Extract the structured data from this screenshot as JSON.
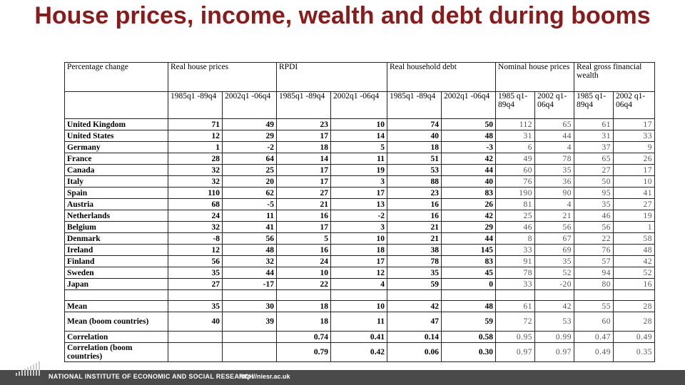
{
  "title": "House prices, income, wealth and debt during booms",
  "header": {
    "row1": [
      "Percentage change",
      "Real house prices",
      "RPDI",
      "Real household debt",
      "Nominal house prices",
      "Real gross financial wealth"
    ],
    "row2": [
      "1985q1 -89q4",
      "2002q1 -06q4",
      "1985q1 -89q4",
      "2002q1 -06q4",
      "1985q1 -89q4",
      "2002q1 -06q4",
      "1985 q1- 89q4",
      "2002 q1- 06q4",
      "1985 q1- 89q4",
      "2002 q1- 06q4"
    ]
  },
  "rows": [
    {
      "country": "United Kingdom",
      "v": [
        "71",
        "49",
        "23",
        "10",
        "74",
        "50",
        "112",
        "65",
        "61",
        "17"
      ]
    },
    {
      "country": "United States",
      "v": [
        "12",
        "29",
        "17",
        "14",
        "40",
        "48",
        "31",
        "44",
        "31",
        "33"
      ]
    },
    {
      "country": "Germany",
      "v": [
        "1",
        "-2",
        "18",
        "5",
        "18",
        "-3",
        "6",
        "4",
        "37",
        "9"
      ]
    },
    {
      "country": "France",
      "v": [
        "28",
        "64",
        "14",
        "11",
        "51",
        "42",
        "49",
        "78",
        "65",
        "26"
      ]
    },
    {
      "country": "Canada",
      "v": [
        "32",
        "25",
        "17",
        "19",
        "53",
        "44",
        "60",
        "35",
        "27",
        "17"
      ]
    },
    {
      "country": "Italy",
      "v": [
        "32",
        "20",
        "17",
        "3",
        "88",
        "40",
        "76",
        "36",
        "50",
        "10"
      ]
    },
    {
      "country": "Spain",
      "v": [
        "110",
        "62",
        "27",
        "17",
        "23",
        "83",
        "190",
        "90",
        "95",
        "41"
      ]
    },
    {
      "country": "Austria",
      "v": [
        "68",
        "-5",
        "21",
        "13",
        "16",
        "26",
        "81",
        "4",
        "35",
        "27"
      ]
    },
    {
      "country": "Netherlands",
      "v": [
        "24",
        "11",
        "16",
        "-2",
        "16",
        "42",
        "25",
        "21",
        "46",
        "19"
      ]
    },
    {
      "country": "Belgium",
      "v": [
        "32",
        "41",
        "17",
        "3",
        "21",
        "29",
        "46",
        "56",
        "56",
        "1"
      ]
    },
    {
      "country": "Denmark",
      "v": [
        "-8",
        "56",
        "5",
        "10",
        "21",
        "44",
        "8",
        "67",
        "22",
        "58"
      ]
    },
    {
      "country": "Ireland",
      "v": [
        "12",
        "48",
        "16",
        "18",
        "38",
        "145",
        "33",
        "69",
        "76",
        "48"
      ]
    },
    {
      "country": "Finland",
      "v": [
        "56",
        "32",
        "24",
        "17",
        "78",
        "83",
        "91",
        "35",
        "57",
        "42"
      ]
    },
    {
      "country": "Sweden",
      "v": [
        "35",
        "44",
        "10",
        "12",
        "35",
        "45",
        "78",
        "52",
        "94",
        "52"
      ]
    },
    {
      "country": "Japan",
      "v": [
        "27",
        "-17",
        "22",
        "4",
        "59",
        "0",
        "33",
        "-20",
        "80",
        "16"
      ]
    }
  ],
  "summary": [
    {
      "label": "Mean",
      "v": [
        "35",
        "30",
        "18",
        "10",
        "42",
        "48",
        "61",
        "42",
        "55",
        "28"
      ]
    },
    {
      "label": "Mean (boom countries)",
      "v": [
        "40",
        "39",
        "18",
        "11",
        "47",
        "59",
        "72",
        "53",
        "60",
        "28"
      ]
    },
    {
      "label": "Correlation",
      "v": [
        "",
        "",
        "0.74",
        "0.41",
        "0.14",
        "0.58",
        "0.95",
        "0.99",
        "0.47",
        "0.49"
      ]
    },
    {
      "label": "Correlation (boom countries)",
      "v": [
        "",
        "",
        "0.79",
        "0.42",
        "0.06",
        "0.30",
        "0.97",
        "0.97",
        "0.49",
        "0.35"
      ]
    }
  ],
  "footer": {
    "org": "NATIONAL INSTITUTE OF ECONOMIC AND SOCIAL RESEARCH",
    "url": "http://niesr.ac.uk"
  },
  "colors": {
    "title": "#8b1a1a",
    "footer_bar": "#4a4a4a"
  }
}
